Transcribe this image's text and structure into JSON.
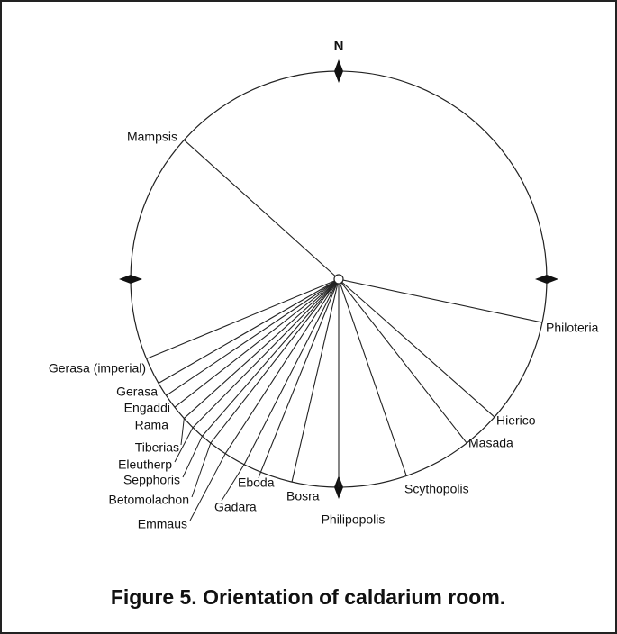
{
  "compass": {
    "north": "N"
  },
  "sites": [
    {
      "label": "Mampsis",
      "bearing": 312
    },
    {
      "label": "Philoteria",
      "bearing": 102
    },
    {
      "label": "Hierico",
      "bearing": 131.5
    },
    {
      "label": "Masada",
      "bearing": 142
    },
    {
      "label": "Scythopolis",
      "bearing": 161
    },
    {
      "label": "Philipopolis",
      "bearing": 180
    },
    {
      "label": "Bosra",
      "bearing": 193
    },
    {
      "label": "Eboda",
      "bearing": 202
    },
    {
      "label": "Gadara",
      "bearing": 207
    },
    {
      "label": "Emmaus",
      "bearing": 213
    },
    {
      "label": "Betomolachon",
      "bearing": 218
    },
    {
      "label": "Sepphoris",
      "bearing": 221
    },
    {
      "label": "Eleutherp",
      "bearing": 224.5
    },
    {
      "label": "Tiberias",
      "bearing": 228
    },
    {
      "label": "Rama",
      "bearing": 232
    },
    {
      "label": "Engaddi",
      "bearing": 236
    },
    {
      "label": "Gerasa",
      "bearing": 240
    },
    {
      "label": "Gerasa (imperial)",
      "bearing": 247.5
    }
  ],
  "caption": "Figure 5. Orientation of caldarium room."
}
